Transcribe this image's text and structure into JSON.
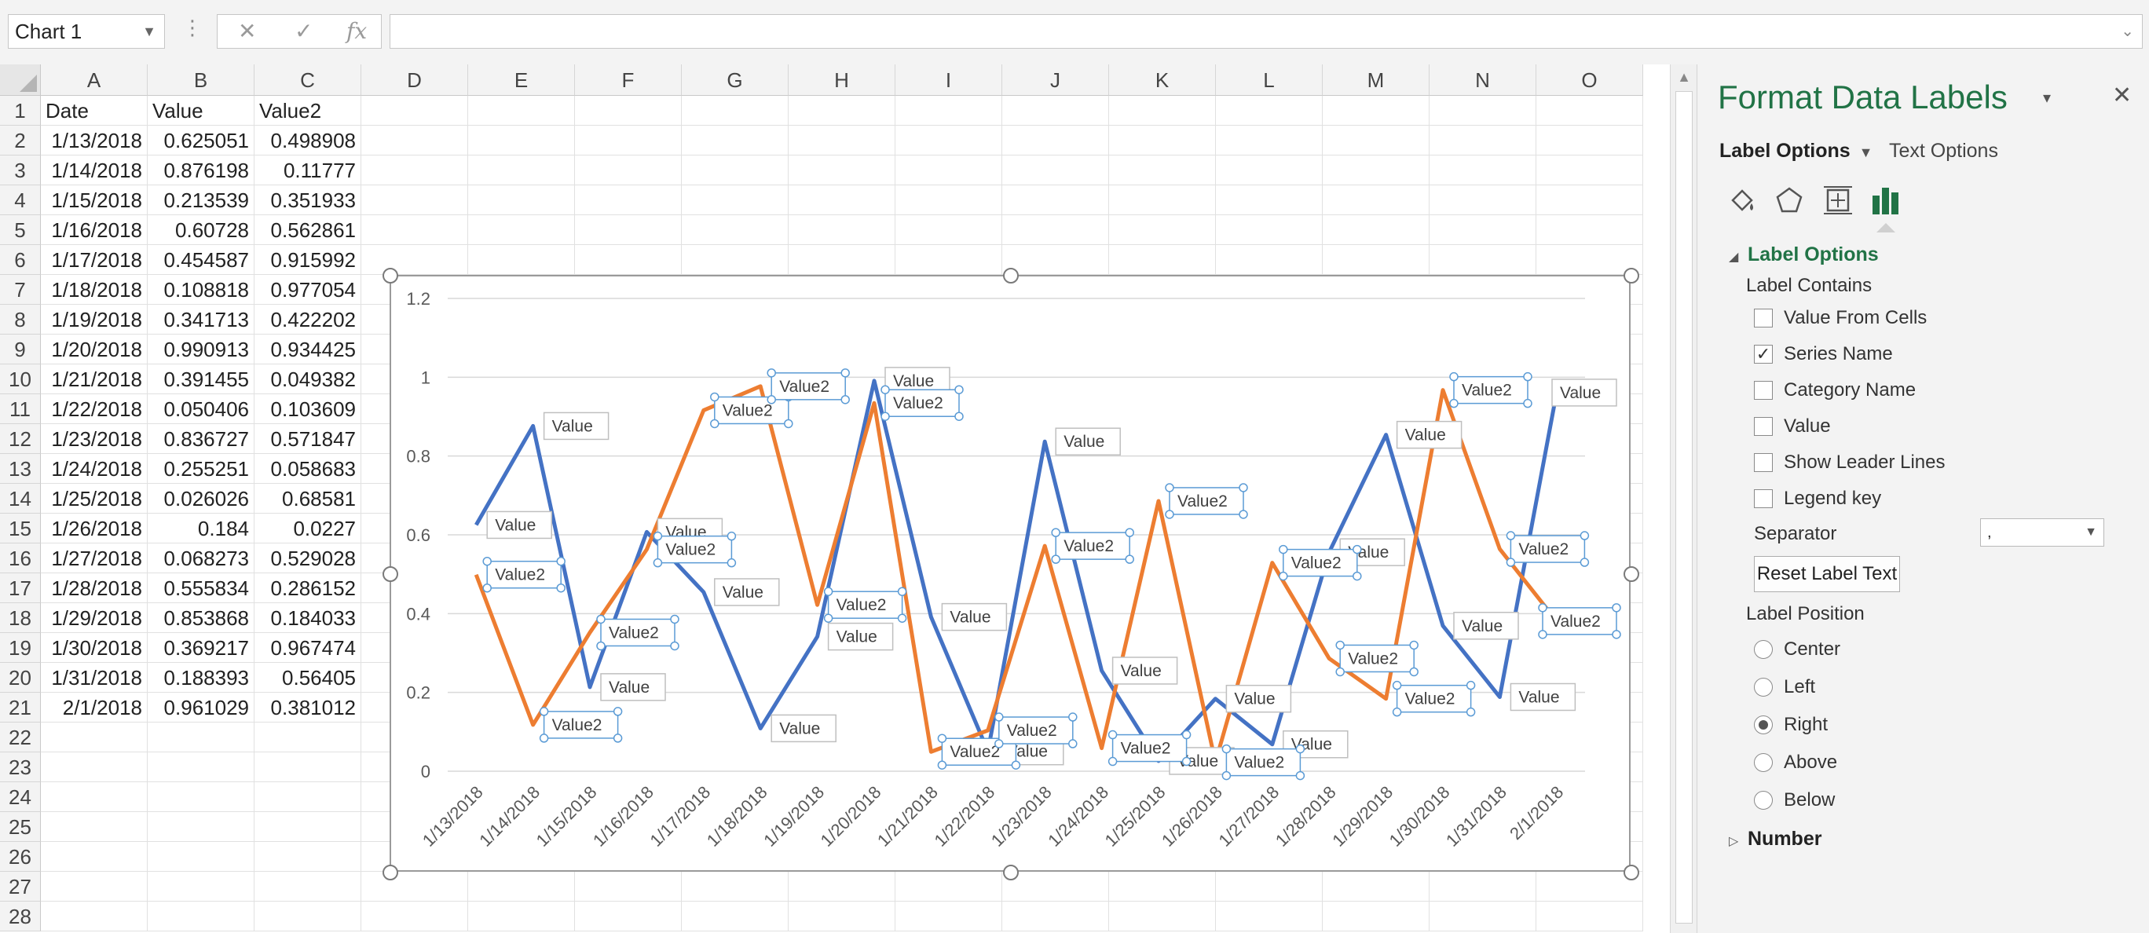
{
  "formula_bar": {
    "name_box": "Chart 1",
    "cancel_icon": "✕",
    "enter_icon": "✓",
    "function_icon": "fx",
    "formula": ""
  },
  "columns": [
    "A",
    "B",
    "C",
    "D",
    "E",
    "F",
    "G",
    "H",
    "I",
    "J",
    "K",
    "L",
    "M",
    "N",
    "O"
  ],
  "rows": [
    "1",
    "2",
    "3",
    "4",
    "5",
    "6",
    "7",
    "8",
    "9",
    "10",
    "11",
    "12",
    "13",
    "14",
    "15",
    "16",
    "17",
    "18",
    "19",
    "20",
    "21",
    "22",
    "23",
    "24",
    "25",
    "26",
    "27",
    "28"
  ],
  "sheet": {
    "headers": [
      "Date",
      "Value",
      "Value2"
    ],
    "rows": [
      [
        "1/13/2018",
        "0.625051",
        "0.498908"
      ],
      [
        "1/14/2018",
        "0.876198",
        "0.11777"
      ],
      [
        "1/15/2018",
        "0.213539",
        "0.351933"
      ],
      [
        "1/16/2018",
        "0.60728",
        "0.562861"
      ],
      [
        "1/17/2018",
        "0.454587",
        "0.915992"
      ],
      [
        "1/18/2018",
        "0.108818",
        "0.977054"
      ],
      [
        "1/19/2018",
        "0.341713",
        "0.422202"
      ],
      [
        "1/20/2018",
        "0.990913",
        "0.934425"
      ],
      [
        "1/21/2018",
        "0.391455",
        "0.049382"
      ],
      [
        "1/22/2018",
        "0.050406",
        "0.103609"
      ],
      [
        "1/23/2018",
        "0.836727",
        "0.571847"
      ],
      [
        "1/24/2018",
        "0.255251",
        "0.058683"
      ],
      [
        "1/25/2018",
        "0.026026",
        "0.68581"
      ],
      [
        "1/26/2018",
        "0.184",
        "0.0227"
      ],
      [
        "1/27/2018",
        "0.068273",
        "0.529028"
      ],
      [
        "1/28/2018",
        "0.555834",
        "0.286152"
      ],
      [
        "1/29/2018",
        "0.853868",
        "0.184033"
      ],
      [
        "1/30/2018",
        "0.369217",
        "0.967474"
      ],
      [
        "1/31/2018",
        "0.188393",
        "0.56405"
      ],
      [
        "2/1/2018",
        "0.961029",
        "0.381012"
      ]
    ]
  },
  "chart_data": {
    "type": "line",
    "categories": [
      "1/13/2018",
      "1/14/2018",
      "1/15/2018",
      "1/16/2018",
      "1/17/2018",
      "1/18/2018",
      "1/19/2018",
      "1/20/2018",
      "1/21/2018",
      "1/22/2018",
      "1/23/2018",
      "1/24/2018",
      "1/25/2018",
      "1/26/2018",
      "1/27/2018",
      "1/28/2018",
      "1/29/2018",
      "1/30/2018",
      "1/31/2018",
      "2/1/2018"
    ],
    "series": [
      {
        "name": "Value",
        "color": "#4472c4",
        "values": [
          0.625051,
          0.876198,
          0.213539,
          0.60728,
          0.454587,
          0.108818,
          0.341713,
          0.990913,
          0.391455,
          0.050406,
          0.836727,
          0.255251,
          0.026026,
          0.184,
          0.068273,
          0.555834,
          0.853868,
          0.369217,
          0.188393,
          0.961029
        ]
      },
      {
        "name": "Value2",
        "color": "#ed7d31",
        "values": [
          0.498908,
          0.11777,
          0.351933,
          0.562861,
          0.915992,
          0.977054,
          0.422202,
          0.934425,
          0.049382,
          0.103609,
          0.571847,
          0.058683,
          0.68581,
          0.0227,
          0.529028,
          0.286152,
          0.184033,
          0.967474,
          0.56405,
          0.381012
        ]
      }
    ],
    "y_ticks": [
      "0",
      "0.2",
      "0.4",
      "0.6",
      "0.8",
      "1",
      "1.2"
    ],
    "ylim": [
      0,
      1.2
    ],
    "title": "",
    "legend": "none",
    "grid": true,
    "data_labels": "series name",
    "selected_labels_series": "Value2"
  },
  "task_pane": {
    "title": "Format Data Labels",
    "caret_icon": "▾",
    "close_icon": "✕",
    "tab_label_options": "Label Options",
    "tab_text_options": "Text Options",
    "section_label_options": "Label Options",
    "label_contains": "Label Contains",
    "checkboxes": [
      {
        "label": "Value From Cells",
        "checked": false
      },
      {
        "label": "Series Name",
        "checked": true
      },
      {
        "label": "Category Name",
        "checked": false
      },
      {
        "label": "Value",
        "checked": false
      },
      {
        "label": "Show Leader Lines",
        "checked": false
      },
      {
        "label": "Legend key",
        "checked": false
      }
    ],
    "separator_label": "Separator",
    "separator_value": ",",
    "reset_button": "Reset Label Text",
    "label_position": "Label Position",
    "positions": [
      {
        "label": "Center",
        "selected": false
      },
      {
        "label": "Left",
        "selected": false
      },
      {
        "label": "Right",
        "selected": true
      },
      {
        "label": "Above",
        "selected": false
      },
      {
        "label": "Below",
        "selected": false
      }
    ],
    "number_section": "Number",
    "accent_color": "#217346"
  }
}
